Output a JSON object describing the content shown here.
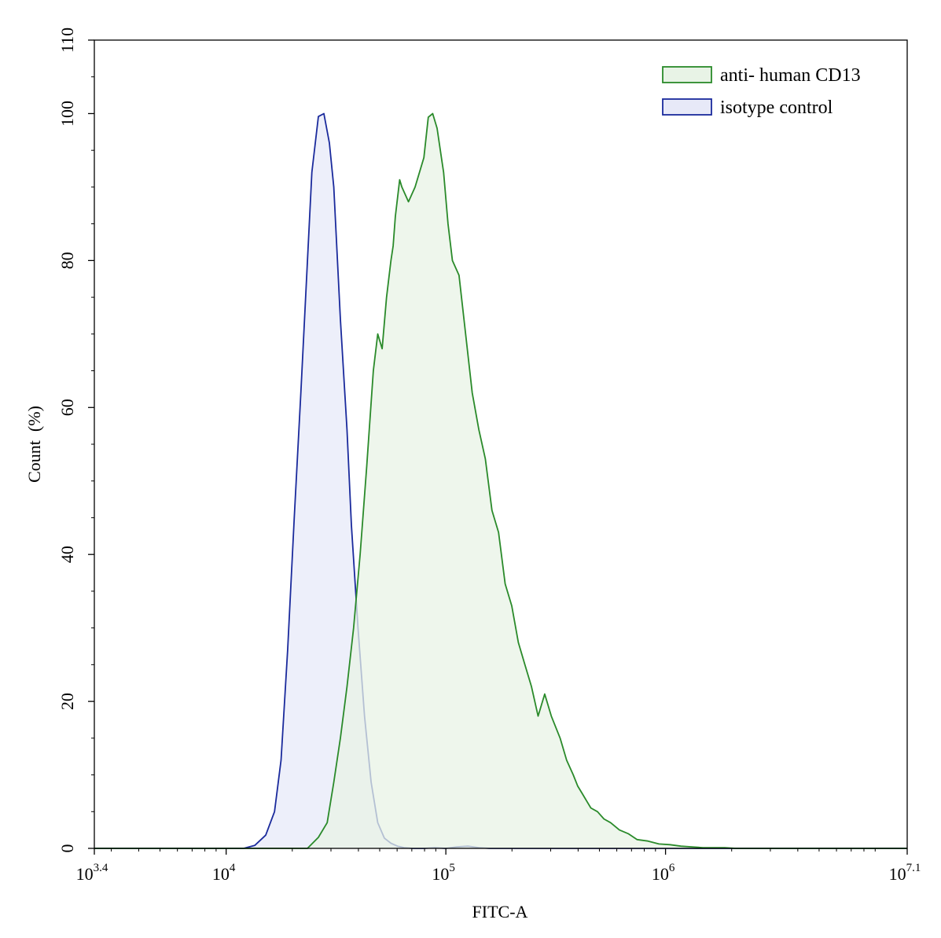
{
  "chart_data": {
    "type": "area",
    "title": "",
    "xlabel": "FITC-A",
    "ylabel": "Count  (%)",
    "xscale": "log",
    "xlim_log10": [
      3.4,
      7.1
    ],
    "ylim": [
      0,
      110
    ],
    "grid": false,
    "legend_position": "top-right",
    "x_ticks": [
      {
        "log10": 3.4,
        "base": "10",
        "exp": "3.4"
      },
      {
        "log10": 4,
        "base": "10",
        "exp": "4"
      },
      {
        "log10": 5,
        "base": "10",
        "exp": "5"
      },
      {
        "log10": 6,
        "base": "10",
        "exp": "6"
      },
      {
        "log10": 7.1,
        "base": "10",
        "exp": "7.1"
      }
    ],
    "y_ticks": [
      {
        "value": 0,
        "label": "0"
      },
      {
        "value": 20,
        "label": "20"
      },
      {
        "value": 40,
        "label": "40"
      },
      {
        "value": 60,
        "label": "60"
      },
      {
        "value": 80,
        "label": "80"
      },
      {
        "value": 100,
        "label": "100"
      },
      {
        "value": 110,
        "label": "110"
      }
    ],
    "series": [
      {
        "name": "isotype control",
        "stroke": "#1a2a9c",
        "fill": "#e7e9f8",
        "x_log10": [
          3.4,
          3.97,
          4.08,
          4.13,
          4.18,
          4.22,
          4.25,
          4.28,
          4.31,
          4.34,
          4.37,
          4.39,
          4.42,
          4.445,
          4.47,
          4.49,
          4.5,
          4.52,
          4.55,
          4.57,
          4.6,
          4.63,
          4.66,
          4.69,
          4.72,
          4.75,
          4.78,
          4.81,
          4.85,
          4.9,
          4.95,
          5.0,
          5.05,
          5.1,
          5.15,
          5.2,
          5.3,
          5.5,
          6.0,
          7.1
        ],
        "values": [
          0,
          0,
          0,
          0.4,
          1.8,
          5.0,
          12.0,
          27.0,
          45.0,
          62.0,
          80.0,
          92.0,
          99.6,
          100.0,
          96.0,
          90.0,
          84.0,
          72.0,
          57.0,
          44.0,
          30.0,
          18.0,
          9.0,
          3.5,
          1.4,
          0.7,
          0.3,
          0.1,
          0,
          0,
          0.1,
          0,
          0.2,
          0.3,
          0.1,
          0,
          0,
          0,
          0,
          0
        ]
      },
      {
        "name": "anti- human CD13",
        "stroke": "#2a8a2a",
        "fill": "#e8f3e6",
        "x_log10": [
          3.4,
          4.37,
          4.42,
          4.46,
          4.49,
          4.52,
          4.55,
          4.58,
          4.61,
          4.64,
          4.67,
          4.69,
          4.71,
          4.73,
          4.75,
          4.76,
          4.77,
          4.79,
          4.8,
          4.83,
          4.86,
          4.9,
          4.92,
          4.94,
          4.96,
          4.98,
          4.99,
          5.01,
          5.03,
          5.06,
          5.09,
          5.12,
          5.15,
          5.18,
          5.21,
          5.24,
          5.27,
          5.3,
          5.33,
          5.36,
          5.39,
          5.42,
          5.45,
          5.48,
          5.52,
          5.55,
          5.58,
          5.6,
          5.62,
          5.64,
          5.66,
          5.69,
          5.72,
          5.75,
          5.79,
          5.83,
          5.87,
          5.92,
          5.97,
          6.02,
          6.07,
          6.12,
          6.17,
          6.22,
          6.27,
          6.32,
          6.38,
          6.44,
          6.5,
          6.56,
          6.62,
          6.68,
          6.74,
          6.8,
          6.86,
          6.92,
          7.0,
          7.05,
          7.1
        ],
        "values": [
          0,
          0,
          1.5,
          3.5,
          9.0,
          15.0,
          22.0,
          30.0,
          40.0,
          52.0,
          65.0,
          70.0,
          68.0,
          75.0,
          80.0,
          82.0,
          86.0,
          91.0,
          90.0,
          88.0,
          90.0,
          94.0,
          99.5,
          100.0,
          98.0,
          94.0,
          92.0,
          85.0,
          80.0,
          78.0,
          70.0,
          62.0,
          57.0,
          53.0,
          46.0,
          43.0,
          36.0,
          33.0,
          28.0,
          25.0,
          22.0,
          18.0,
          21.0,
          18.0,
          15.0,
          12.0,
          10.0,
          8.5,
          7.5,
          6.5,
          5.5,
          5.0,
          4.0,
          3.5,
          2.5,
          2.0,
          1.2,
          1.0,
          0.6,
          0.5,
          0.3,
          0.2,
          0.1,
          0.1,
          0.1,
          0,
          0,
          0,
          0,
          0,
          0,
          0,
          0,
          0,
          0,
          0,
          0,
          0,
          0
        ]
      }
    ],
    "legend": [
      {
        "label": "anti- human CD13",
        "series": 1
      },
      {
        "label": "isotype control",
        "series": 0
      }
    ]
  }
}
